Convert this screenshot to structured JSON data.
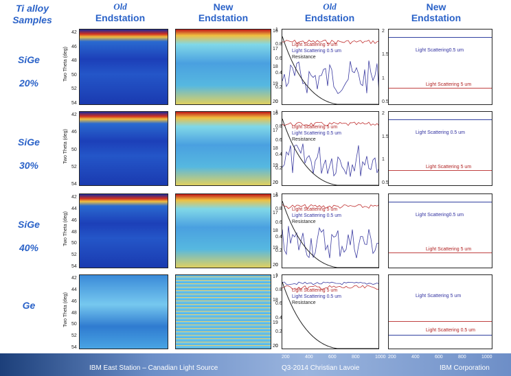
{
  "header": {
    "corner": [
      "Ti alloy",
      "Samples"
    ],
    "columns": [
      [
        "Old",
        "Endstation"
      ],
      [
        "New",
        "Endstation"
      ],
      [
        "Old",
        "Endstation"
      ],
      [
        "New",
        "Endstation"
      ]
    ]
  },
  "rows": [
    {
      "label": [
        "SiGe",
        "20%"
      ],
      "xrd_axis": "Two Theta (deg)",
      "xrd_ticks": [
        "42",
        "46",
        "48",
        "50",
        "52",
        "54"
      ],
      "new_ticks": [
        "16",
        "17",
        "18",
        "19",
        "20"
      ],
      "old_ticks": [
        "1",
        "0.8",
        "0.6",
        "0.4",
        "0.2",
        "0"
      ],
      "old_legend": [
        "Light Scattering 5 um",
        "Light Scattering 0.5 um",
        "Resistance"
      ],
      "new_ticks2": [
        "2",
        "1.5",
        "1",
        "0.5"
      ],
      "new_legend": [
        "Light Scattering0.5 um",
        "Light Scattering 5 um"
      ]
    },
    {
      "label": [
        "SiGe",
        "30%"
      ],
      "xrd_axis": "Two Theta (deg)",
      "xrd_ticks": [
        "42",
        "46",
        "50",
        "52",
        "54"
      ],
      "new_ticks": [
        "16",
        "17",
        "18",
        "19",
        "20"
      ],
      "old_ticks": [
        "1",
        "0.8",
        "0.6",
        "0.4",
        "0.2",
        "0"
      ],
      "old_legend": [
        "Light Scattering 5 um",
        "Light Scattering 0.5 um",
        "Resistance"
      ],
      "new_ticks2": [
        "2",
        "1.5",
        "1",
        "0.5"
      ],
      "new_legend": [
        "Light Scattering 0.5 um",
        "Light Scattering 5 um"
      ]
    },
    {
      "label": [
        "SiGe",
        "40%"
      ],
      "xrd_axis": "Two Theta (deg)",
      "xrd_ticks": [
        "42",
        "44",
        "46",
        "48",
        "50",
        "52",
        "54"
      ],
      "new_ticks": [
        "16",
        "17",
        "18",
        "19",
        "20"
      ],
      "old_ticks": [
        "1",
        "0.8",
        "0.6",
        "0.4",
        "0.2",
        "0"
      ],
      "old_legend": [
        "Light Scattering 5 um",
        "Light Scattering 0.5 um",
        "Resistance"
      ],
      "new_ticks2": [],
      "new_legend": [
        "Light Scattering0.5 um",
        "Light Scattering 5 um"
      ]
    },
    {
      "label": [
        "Ge"
      ],
      "xrd_axis": "Two Theta (deg)",
      "xrd_ticks": [
        "42",
        "44",
        "46",
        "48",
        "50",
        "52",
        "54"
      ],
      "new_ticks": [
        "17",
        "18",
        "19",
        "20"
      ],
      "old_ticks": [
        "1",
        "0.8",
        "0.6",
        "0.4",
        "0.2",
        "0"
      ],
      "old_legend": [
        "Light Scattering 5 um",
        "Light Scattering 0.5 um",
        "Resistance"
      ],
      "new_ticks2": [],
      "new_legend": [
        "Light Scattering 5 um",
        "Light Scattering 0.5 um"
      ]
    }
  ],
  "bottom_ticks": {
    "old": [
      "200",
      "400",
      "600",
      "800",
      "1000"
    ],
    "new": [
      "200",
      "400",
      "600",
      "800",
      "1000"
    ]
  },
  "footer": {
    "left": "IBM East Station – Canadian Light Source",
    "center": "Q3-2014  Christian Lavoie",
    "right": "IBM Corporation"
  }
}
